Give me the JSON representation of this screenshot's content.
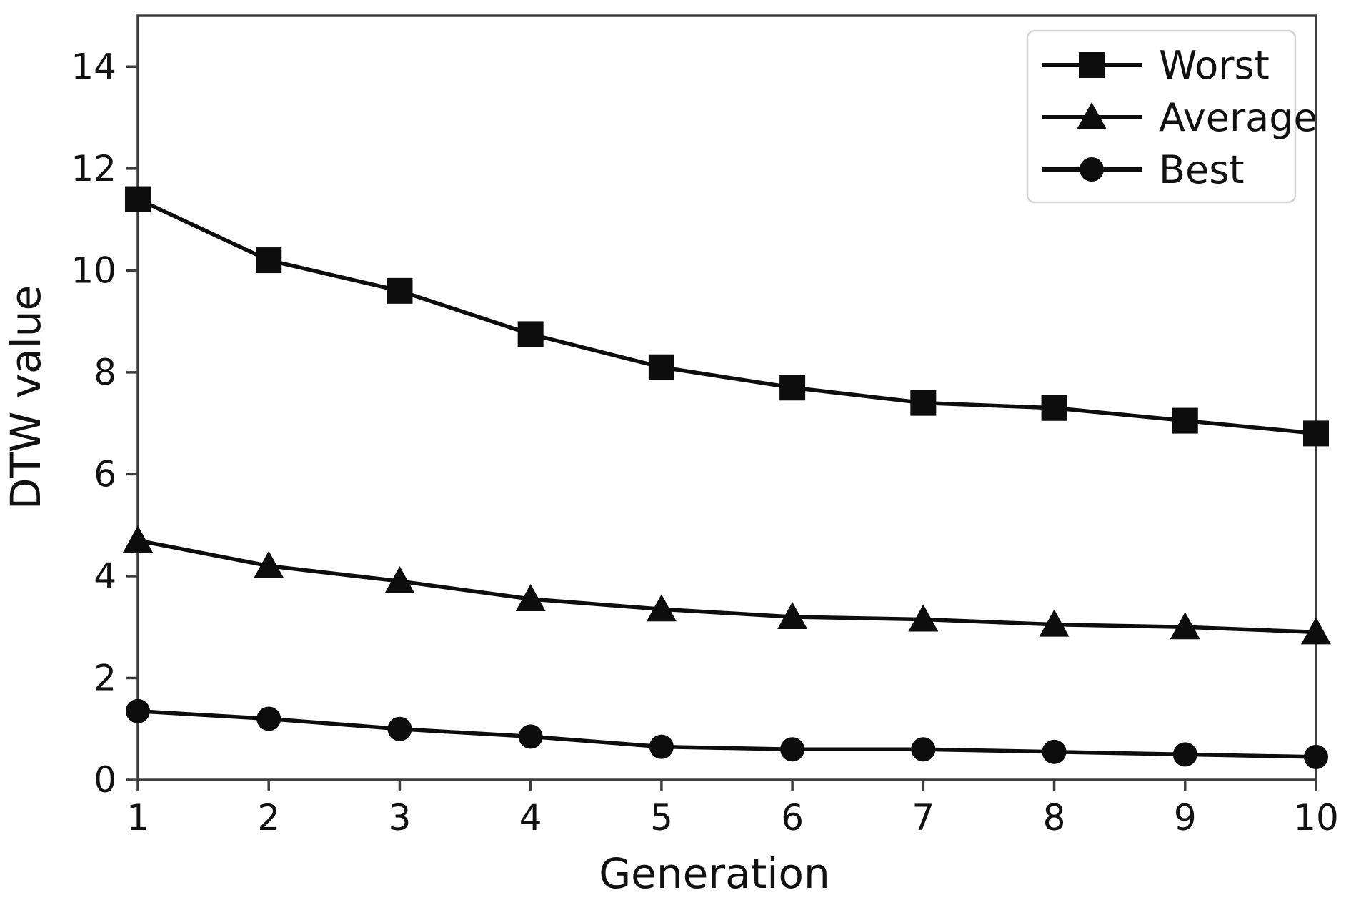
{
  "figure": {
    "background_color": "#ffffff"
  },
  "chart_data": {
    "type": "line",
    "title": "",
    "xlabel": "Generation",
    "ylabel": "DTW value",
    "x": [
      1,
      2,
      3,
      4,
      5,
      6,
      7,
      8,
      9,
      10
    ],
    "xticks": [
      "1",
      "2",
      "3",
      "4",
      "5",
      "6",
      "7",
      "8",
      "9",
      "10"
    ],
    "yticks": [
      "0",
      "2",
      "4",
      "6",
      "8",
      "10",
      "12",
      "14"
    ],
    "xlim": [
      1,
      10
    ],
    "ylim": [
      0,
      15
    ],
    "grid": false,
    "legend_position": "upper right",
    "series": [
      {
        "name": "Worst",
        "marker": "square",
        "values": [
          11.4,
          10.2,
          9.6,
          8.75,
          8.1,
          7.7,
          7.4,
          7.3,
          7.05,
          6.8
        ]
      },
      {
        "name": "Average",
        "marker": "triangle",
        "values": [
          4.7,
          4.2,
          3.9,
          3.55,
          3.35,
          3.2,
          3.15,
          3.05,
          3.0,
          2.9
        ]
      },
      {
        "name": "Best",
        "marker": "circle",
        "values": [
          1.35,
          1.2,
          1.0,
          0.85,
          0.65,
          0.6,
          0.6,
          0.55,
          0.5,
          0.45
        ]
      }
    ],
    "colors": {
      "line": "#0d0d0d",
      "marker": "#0d0d0d",
      "spine": "#3d3d3d",
      "tick": "#3d3d3d",
      "text": "#111111",
      "legend_border": "#d5d5d5",
      "legend_background": "#ffffff"
    }
  }
}
